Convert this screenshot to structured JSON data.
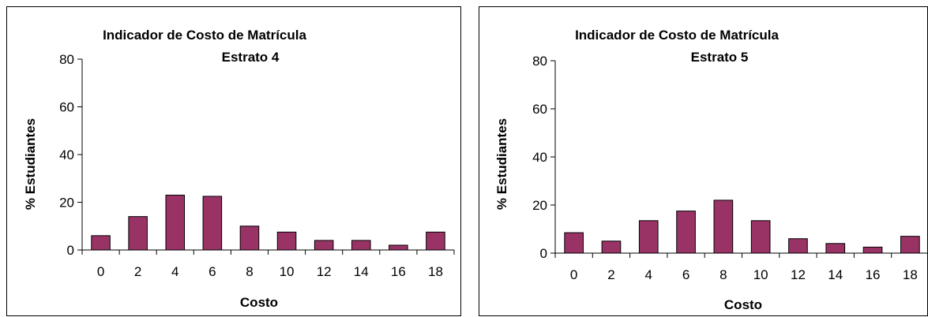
{
  "colors": {
    "bar_fill": "#993366",
    "bar_stroke": "#000000",
    "axis": "#000000",
    "background": "#ffffff"
  },
  "chart_data": [
    {
      "type": "bar",
      "title": "Indicador de Costo de Matrícula",
      "subtitle": "Estrato 4",
      "xlabel": "Costo",
      "ylabel": "% Estudiantes",
      "categories": [
        "0",
        "2",
        "4",
        "6",
        "8",
        "10",
        "12",
        "14",
        "16",
        "18"
      ],
      "values": [
        6,
        14,
        23,
        22.5,
        10,
        7.5,
        4,
        4,
        2,
        7.5
      ],
      "ylim": [
        0,
        80
      ],
      "yticks": [
        "0",
        "20",
        "40",
        "60",
        "80"
      ],
      "grid": false,
      "legend": "none"
    },
    {
      "type": "bar",
      "title": "Indicador de Costo de Matrícula",
      "subtitle": "Estrato 5",
      "xlabel": "Costo",
      "ylabel": "% Estudiantes",
      "categories": [
        "0",
        "2",
        "4",
        "6",
        "8",
        "10",
        "12",
        "14",
        "16",
        "18"
      ],
      "values": [
        8.5,
        5,
        13.5,
        17.5,
        22,
        13.5,
        6,
        4,
        2.5,
        7
      ],
      "ylim": [
        0,
        80
      ],
      "yticks": [
        "0",
        "20",
        "40",
        "60",
        "80"
      ],
      "grid": false,
      "legend": "none"
    }
  ]
}
